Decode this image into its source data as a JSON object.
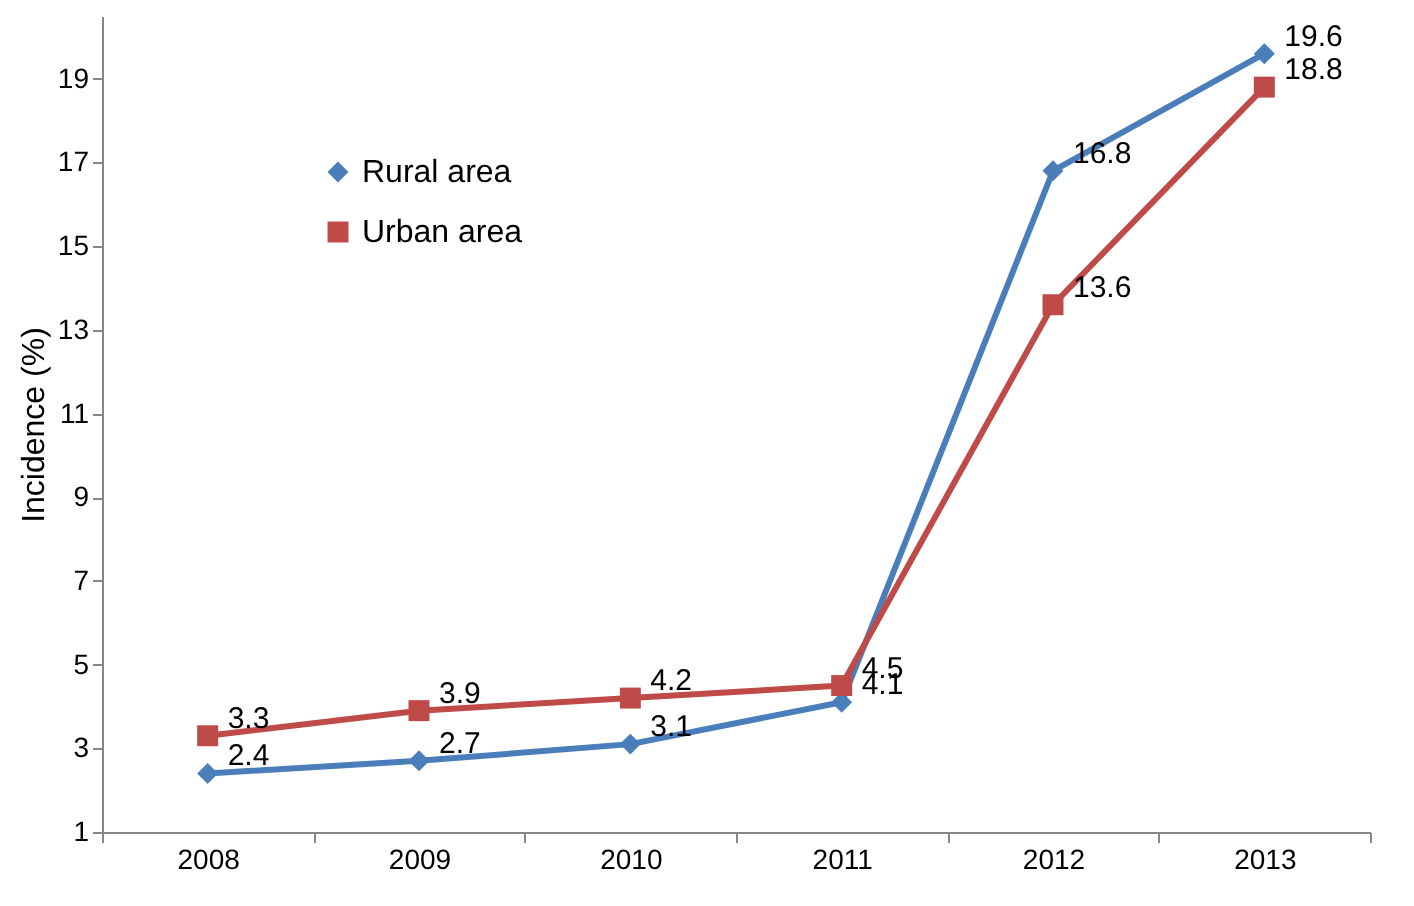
{
  "chart_data": {
    "type": "line",
    "ylabel": "Incidence (%)",
    "categories": [
      "2008",
      "2009",
      "2010",
      "2011",
      "2012",
      "2013"
    ],
    "series": [
      {
        "name": "Rural area",
        "color": "#4a7ebb",
        "marker": "diamond",
        "values": [
          2.4,
          2.7,
          3.1,
          4.1,
          16.8,
          19.6
        ]
      },
      {
        "name": "Urban area",
        "color": "#be4b48",
        "marker": "square",
        "values": [
          3.3,
          3.9,
          4.2,
          4.5,
          13.6,
          18.8
        ]
      }
    ],
    "ylim": [
      1,
      20.5
    ],
    "yticks": [
      1,
      3,
      5,
      7,
      9,
      11,
      13,
      15,
      17,
      19
    ],
    "grid": false,
    "legend": "top left",
    "data_labels": true
  }
}
